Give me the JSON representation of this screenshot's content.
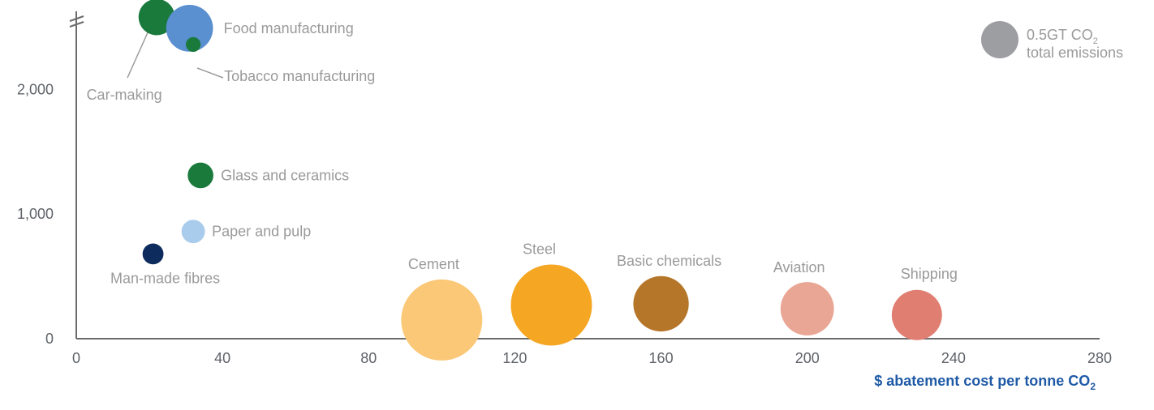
{
  "chart_data": {
    "type": "scatter",
    "subtype": "bubble",
    "title": "",
    "xlabel": "$ abatement cost per tonne CO",
    "xlabel_subscript": "2",
    "ylabel": "",
    "xlim": [
      0,
      280
    ],
    "ylim": [
      0,
      2600
    ],
    "y_axis_break": true,
    "x_ticks": [
      0,
      40,
      80,
      120,
      160,
      200,
      240,
      280
    ],
    "x_tick_labels": [
      "0",
      "40",
      "80",
      "120",
      "160",
      "200",
      "240",
      "280"
    ],
    "y_ticks": [
      0,
      1000,
      2000
    ],
    "y_tick_labels": [
      "0",
      "1,000",
      "2,000"
    ],
    "grid": false,
    "legend": {
      "position": "top-right",
      "text": "0.5GT CO",
      "subscript": "2",
      "text2": "total emissions",
      "color": "#9d9ea2"
    },
    "points": [
      {
        "label": "Car-making",
        "x": 22,
        "y": 2580,
        "size": 0.12,
        "color": "#1a7a3c"
      },
      {
        "label": "Food manufacturing",
        "x": 31,
        "y": 2490,
        "size": 0.2,
        "color": "#5a8fd0"
      },
      {
        "label": "Tobacco manufacturing",
        "x": 32,
        "y": 2360,
        "size": 0.02,
        "color": "#1a7a3c"
      },
      {
        "label": "Glass and ceramics",
        "x": 34,
        "y": 1310,
        "size": 0.06,
        "color": "#1a7a3c"
      },
      {
        "label": "Paper and pulp",
        "x": 32,
        "y": 860,
        "size": 0.05,
        "color": "#a9cbec"
      },
      {
        "label": "Man-made fibres",
        "x": 21,
        "y": 680,
        "size": 0.04,
        "color": "#0d2b5c"
      },
      {
        "label": "Cement",
        "x": 100,
        "y": 150,
        "size": 0.6,
        "color": "#fbc878"
      },
      {
        "label": "Steel",
        "x": 130,
        "y": 270,
        "size": 0.6,
        "color": "#f5a623"
      },
      {
        "label": "Basic chemicals",
        "x": 160,
        "y": 280,
        "size": 0.28,
        "color": "#b5762a"
      },
      {
        "label": "Aviation",
        "x": 200,
        "y": 240,
        "size": 0.26,
        "color": "#eaa695"
      },
      {
        "label": "Shipping",
        "x": 230,
        "y": 190,
        "size": 0.23,
        "color": "#e07e72"
      }
    ]
  }
}
